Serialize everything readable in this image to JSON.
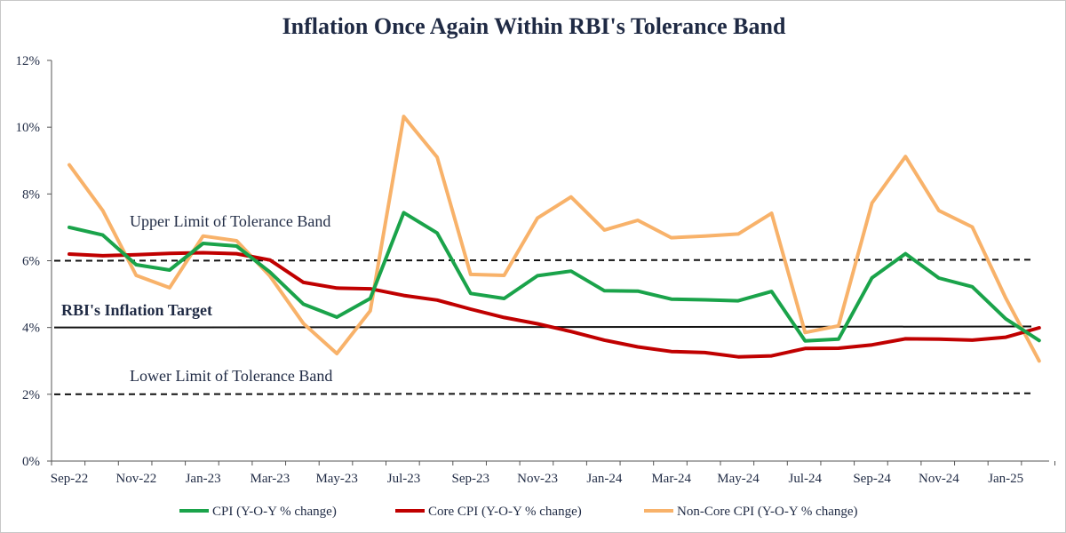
{
  "chart_data": {
    "type": "line",
    "title": "Inflation Once Again Within RBI's Tolerance Band",
    "xlabel": "",
    "ylabel": "",
    "ylim": [
      0,
      12
    ],
    "y_ticks": [
      "0%",
      "2%",
      "4%",
      "6%",
      "8%",
      "10%",
      "12%"
    ],
    "x": [
      "Sep-22",
      "Oct-22",
      "Nov-22",
      "Dec-22",
      "Jan-23",
      "Feb-23",
      "Mar-23",
      "Apr-23",
      "May-23",
      "Jun-23",
      "Jul-23",
      "Aug-23",
      "Sep-23",
      "Oct-23",
      "Nov-23",
      "Dec-23",
      "Jan-24",
      "Feb-24",
      "Mar-24",
      "Apr-24",
      "May-24",
      "Jun-24",
      "Jul-24",
      "Aug-24",
      "Sep-24",
      "Oct-24",
      "Nov-24",
      "Dec-24",
      "Jan-25",
      "Feb-25"
    ],
    "x_tick_labels": [
      "Sep-22",
      "Nov-22",
      "Jan-23",
      "Mar-23",
      "May-23",
      "Jul-23",
      "Sep-23",
      "Nov-23",
      "Jan-24",
      "Mar-24",
      "May-24",
      "Jul-24",
      "Sep-24",
      "Nov-24",
      "Jan-25"
    ],
    "series": [
      {
        "name": "CPI (Y-O-Y % change)",
        "color": "#1aa34a",
        "values": [
          7.0,
          6.77,
          5.88,
          5.72,
          6.52,
          6.44,
          5.66,
          4.7,
          4.31,
          4.87,
          7.44,
          6.83,
          5.02,
          4.87,
          5.55,
          5.69,
          5.1,
          5.09,
          4.85,
          4.83,
          4.8,
          5.08,
          3.6,
          3.65,
          5.49,
          6.21,
          5.48,
          5.22,
          4.26,
          3.61
        ]
      },
      {
        "name": "Core CPI (Y-O-Y % change)",
        "color": "#c00000",
        "values": [
          6.2,
          6.15,
          6.18,
          6.22,
          6.24,
          6.21,
          6.02,
          5.35,
          5.18,
          5.16,
          4.96,
          4.82,
          4.55,
          4.3,
          4.11,
          3.88,
          3.62,
          3.42,
          3.28,
          3.25,
          3.12,
          3.15,
          3.37,
          3.38,
          3.48,
          3.66,
          3.65,
          3.62,
          3.71,
          3.99
        ]
      },
      {
        "name": "Non-Core CPI (Y-O-Y % change)",
        "color": "#f8b26a",
        "values": [
          8.87,
          7.5,
          5.56,
          5.19,
          6.74,
          6.6,
          5.54,
          4.12,
          3.22,
          4.5,
          10.32,
          9.1,
          5.59,
          5.56,
          7.28,
          7.91,
          6.92,
          7.21,
          6.69,
          6.74,
          6.8,
          7.42,
          3.85,
          4.05,
          7.73,
          9.12,
          7.5,
          7.01,
          4.88,
          3.0
        ]
      }
    ],
    "reference_lines": [
      {
        "label": "Upper Limit of Tolerance Band",
        "y": 6,
        "style": "dashed"
      },
      {
        "label": "RBI's Inflation Target",
        "y": 4,
        "style": "solid"
      },
      {
        "label": "Lower Limit of Tolerance Band",
        "y": 2,
        "style": "dashed"
      }
    ],
    "grid": false,
    "legend_placement": "bottom"
  }
}
